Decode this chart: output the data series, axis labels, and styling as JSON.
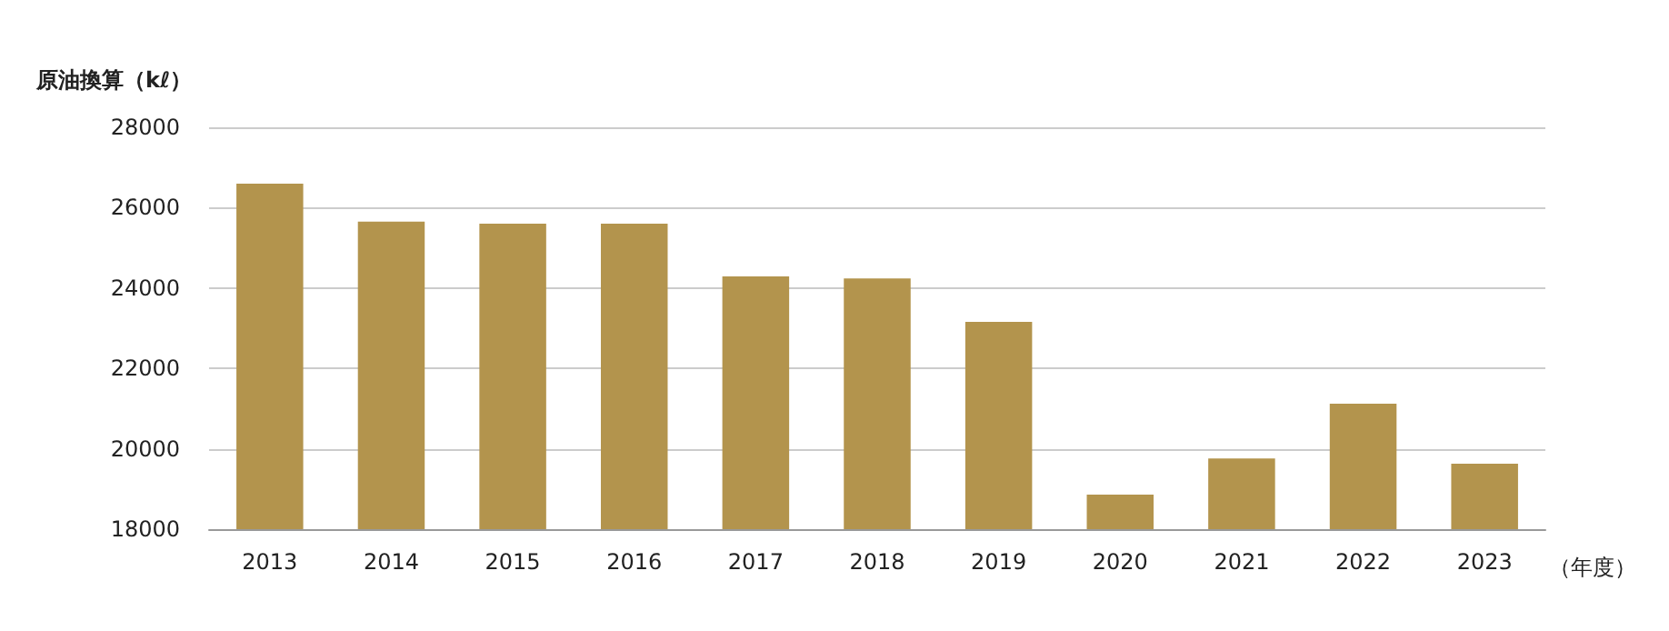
{
  "chart_data": {
    "type": "bar",
    "ylabel": "原油換算（kℓ）",
    "xlabel": "（年度）",
    "categories": [
      "2013",
      "2014",
      "2015",
      "2016",
      "2017",
      "2018",
      "2019",
      "2020",
      "2021",
      "2022",
      "2023"
    ],
    "values": [
      26600,
      25650,
      25600,
      25600,
      24290,
      24240,
      23160,
      18860,
      19760,
      21120,
      19630
    ],
    "color": "#b3944d",
    "ylim": [
      18000,
      28000
    ],
    "yticks": [
      18000,
      20000,
      22000,
      24000,
      26000,
      28000
    ],
    "grid": "y"
  }
}
